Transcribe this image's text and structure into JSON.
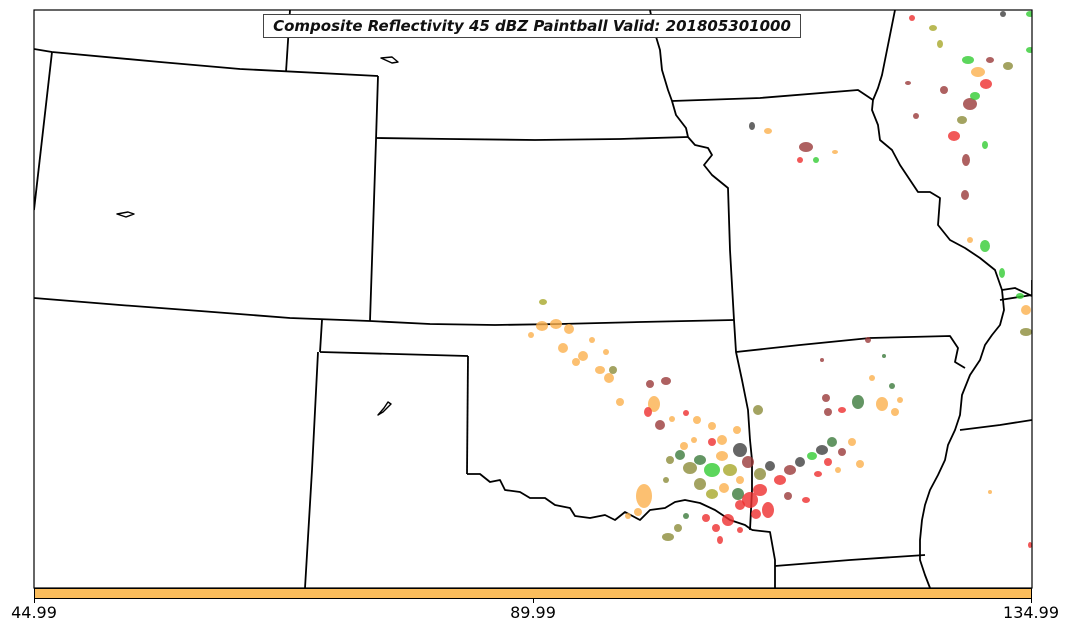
{
  "title": "Composite Reflectivity 45 dBZ Paintball Valid: 201805301000",
  "colorbar": {
    "color": "#fbbd5c",
    "ticks": [
      "44.99",
      "89.99",
      "134.99"
    ]
  },
  "colors": {
    "orange": "#fbb04e",
    "red": "#ee2e2e",
    "dark_red": "#9a3a3a",
    "green": "#33cc33",
    "olive": "#8c8c3a",
    "dark_green": "#3c7a3c",
    "dark_gray": "#404040",
    "yellow_olive": "#a8a82a"
  }
}
